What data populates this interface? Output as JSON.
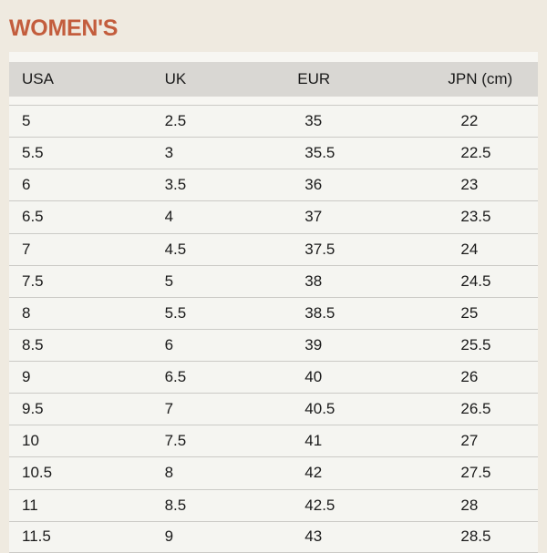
{
  "chart_data": {
    "type": "table",
    "title": "WOMEN'S",
    "columns": [
      "USA",
      "UK",
      "EUR",
      "JPN (cm)"
    ],
    "rows": [
      [
        "5",
        "2.5",
        "35",
        "22"
      ],
      [
        "5.5",
        "3",
        "35.5",
        "22.5"
      ],
      [
        "6",
        "3.5",
        "36",
        "23"
      ],
      [
        "6.5",
        "4",
        "37",
        "23.5"
      ],
      [
        "7",
        "4.5",
        "37.5",
        "24"
      ],
      [
        "7.5",
        "5",
        "38",
        "24.5"
      ],
      [
        "8",
        "5.5",
        "38.5",
        "25"
      ],
      [
        "8.5",
        "6",
        "39",
        "25.5"
      ],
      [
        "9",
        "6.5",
        "40",
        "26"
      ],
      [
        "9.5",
        "7",
        "40.5",
        "26.5"
      ],
      [
        "10",
        "7.5",
        "41",
        "27"
      ],
      [
        "10.5",
        "8",
        "42",
        "27.5"
      ],
      [
        "11",
        "8.5",
        "42.5",
        "28"
      ],
      [
        "11.5",
        "9",
        "43",
        "28.5"
      ]
    ]
  },
  "colors": {
    "accent_title": "#c35d3d",
    "page_background": "#efeae0",
    "table_background": "#f7f6f2",
    "header_background": "#d9d7d3",
    "row_background": "#f5f5f1",
    "divider": "#cbcac6",
    "text": "#1a1a1a"
  }
}
